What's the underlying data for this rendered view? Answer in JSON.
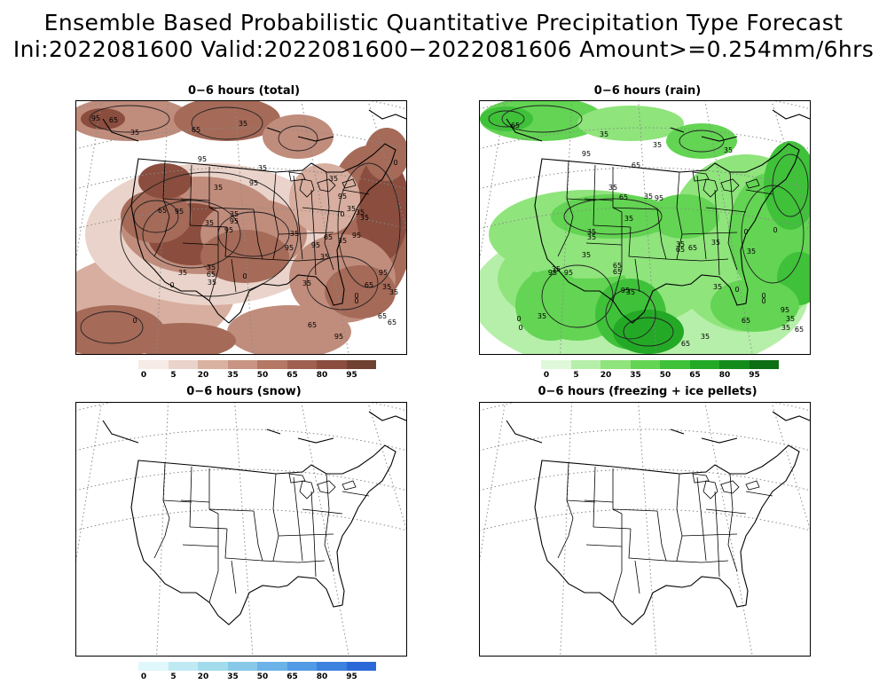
{
  "header": {
    "title_line1": "Ensemble Based Probabilistic Quantitative Precipitation Type Forecast",
    "title_line2": "Ini:2022081600 Valid:2022081600−2022081606 Amount>=0.254mm/6hrs"
  },
  "panels": [
    {
      "title": "0−6 hours (total)",
      "colorbar": {
        "labels": [
          "0",
          "5",
          "20",
          "35",
          "50",
          "65",
          "80",
          "95"
        ],
        "colors": [
          "#f6ebe6",
          "#ead3ca",
          "#dab2a2",
          "#c99484",
          "#b47865",
          "#a06050",
          "#8a4d3e",
          "#704030"
        ]
      },
      "contour_labels": [
        "95",
        "65",
        "35",
        "65",
        "95",
        "35",
        "35",
        "35",
        "95",
        "65",
        "95",
        "35",
        "95",
        "35",
        "95",
        "35",
        "95",
        "65",
        "95",
        "35",
        "65",
        "35",
        "35",
        "35",
        "0",
        "0",
        "0",
        "0",
        "0",
        "65",
        "95",
        "35",
        "35",
        "65",
        "95",
        "35",
        "0",
        "35",
        "35",
        "35",
        "35",
        "65",
        "95",
        "0",
        "95",
        "35",
        "65"
      ]
    },
    {
      "title": "0−6 hours (rain)",
      "colorbar": {
        "labels": [
          "0",
          "5",
          "20",
          "35",
          "50",
          "65",
          "80",
          "95"
        ],
        "colors": [
          "#dff8d8",
          "#b6efaa",
          "#8fe47c",
          "#63d453",
          "#3fc13a",
          "#24a927",
          "#148c1b",
          "#0d6e14"
        ]
      },
      "contour_labels": [
        "65",
        "35",
        "95",
        "35",
        "35",
        "65",
        "35",
        "35",
        "95",
        "65",
        "35",
        "35",
        "35",
        "35",
        "95",
        "65",
        "65",
        "35",
        "35",
        "65",
        "35",
        "35",
        "0",
        "0",
        "0",
        "0",
        "0",
        "35",
        "95",
        "35",
        "65",
        "95",
        "65",
        "35",
        "35",
        "65",
        "35",
        "0",
        "0",
        "35",
        "65",
        "95"
      ]
    },
    {
      "title": "0−6 hours (snow)",
      "colorbar": {
        "labels": [
          "0",
          "5",
          "20",
          "35",
          "50",
          "65",
          "80",
          "95"
        ],
        "colors": [
          "#e0f7fb",
          "#bfeaf4",
          "#a2dcec",
          "#88c9ea",
          "#6bb3e8",
          "#529ae4",
          "#3d82df",
          "#2b69d8"
        ]
      },
      "contour_labels": []
    },
    {
      "title": "0−6 hours (freezing + ice pellets)",
      "colorbar": null,
      "contour_labels": []
    }
  ]
}
